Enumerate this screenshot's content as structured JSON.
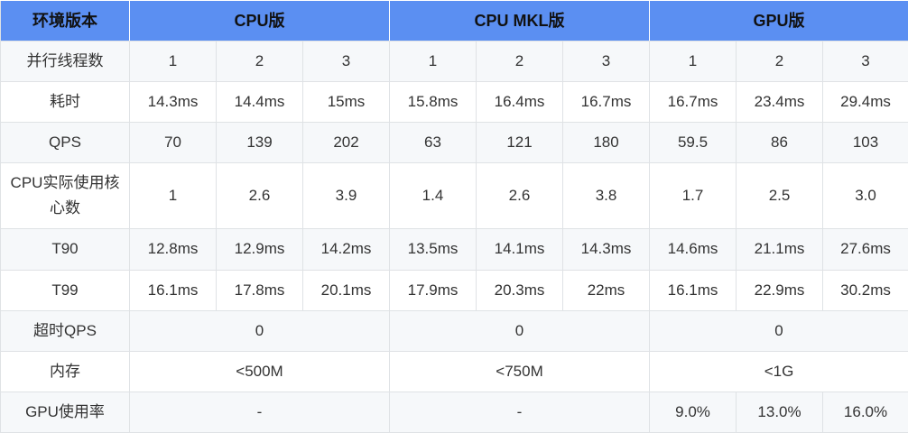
{
  "header": {
    "label": "环境版本",
    "groups": [
      "CPU版",
      "CPU MKL版",
      "GPU版"
    ]
  },
  "rows": [
    {
      "label": "并行线程数",
      "cells": [
        "1",
        "2",
        "3",
        "1",
        "2",
        "3",
        "1",
        "2",
        "3"
      ]
    },
    {
      "label": "耗时",
      "cells": [
        "14.3ms",
        "14.4ms",
        "15ms",
        "15.8ms",
        "16.4ms",
        "16.7ms",
        "16.7ms",
        "23.4ms",
        "29.4ms"
      ]
    },
    {
      "label": "QPS",
      "cells": [
        "70",
        "139",
        "202",
        "63",
        "121",
        "180",
        "59.5",
        "86",
        "103"
      ]
    },
    {
      "label": "CPU实际使用核心数",
      "cells": [
        "1",
        "2.6",
        "3.9",
        "1.4",
        "2.6",
        "3.8",
        "1.7",
        "2.5",
        "3.0"
      ]
    },
    {
      "label": "T90",
      "cells": [
        "12.8ms",
        "12.9ms",
        "14.2ms",
        "13.5ms",
        "14.1ms",
        "14.3ms",
        "14.6ms",
        "21.1ms",
        "27.6ms"
      ]
    },
    {
      "label": "T99",
      "cells": [
        "16.1ms",
        "17.8ms",
        "20.1ms",
        "17.9ms",
        "20.3ms",
        "22ms",
        "16.1ms",
        "22.9ms",
        "30.2ms"
      ]
    },
    {
      "label": "超时QPS",
      "groups": [
        "0",
        "0",
        "0"
      ]
    },
    {
      "label": "内存",
      "groups": [
        "<500M",
        "<750M",
        "<1G"
      ]
    },
    {
      "label": "GPU使用率",
      "mixed": [
        "-",
        "-",
        "9.0%",
        "13.0%",
        "16.0%"
      ]
    }
  ]
}
